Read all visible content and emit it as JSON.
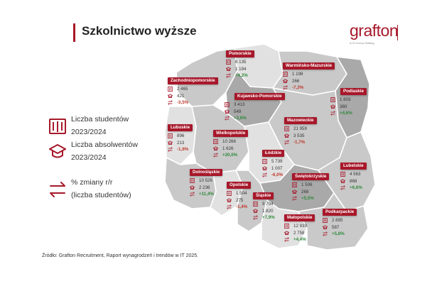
{
  "title": "Szkolnictwo wyższe",
  "logo": {
    "word": "grafton",
    "sub": "A Gi Group Holding"
  },
  "legend": {
    "students_line1": "Liczba studentów",
    "students_line2": "2023/2024",
    "graduates_line1": "Liczba  absolwentów",
    "graduates_line2": "2023/2024",
    "change_line1": "% zmiany r/r",
    "change_line2": "(liczba studentów)"
  },
  "colors": {
    "accent": "#a7182a",
    "region_gray": "#c9c9c9",
    "region_light": "#e1e1e1",
    "region_dark": "#a9a9a9",
    "up": "#2f8a3a",
    "down": "#c0392b"
  },
  "icons": {
    "students": "book-icon",
    "graduates": "graduation-cap-icon",
    "change": "arrows-swap-icon"
  },
  "regions": [
    {
      "name": "Pomorskie",
      "students": "6 135",
      "graduates": "1 194",
      "change": "+4,2%",
      "trend": "up"
    },
    {
      "name": "Warmińsko-Mazurskie",
      "students": "1 198",
      "graduates": "266",
      "change": "-7,3%",
      "trend": "down"
    },
    {
      "name": "Zachodniopomorskie",
      "students": "2 465",
      "graduates": "421",
      "change": "-3,5%",
      "trend": "down"
    },
    {
      "name": "Kujawsko-Pomorskie",
      "students": "3 413",
      "graduates": "549",
      "change": "+3,6%",
      "trend": "up"
    },
    {
      "name": "Podlaskie",
      "students": "1 803",
      "graduates": "360",
      "change": "+4,6%",
      "trend": "up"
    },
    {
      "name": "Mazowieckie",
      "students": "21 959",
      "graduates": "3 535",
      "change": "-1,7%",
      "trend": "down"
    },
    {
      "name": "Lubuskie",
      "students": "896",
      "graduates": "213",
      "change": "-1,9%",
      "trend": "down"
    },
    {
      "name": "Wielkopolskie",
      "students": "10 266",
      "graduates": "1 626",
      "change": "+20,0%",
      "trend": "up"
    },
    {
      "name": "Łódzkie",
      "students": "5 739",
      "graduates": "1 007",
      "change": "-6,0%",
      "trend": "down"
    },
    {
      "name": "Lubelskie",
      "students": "4 563",
      "graduates": "868",
      "change": "+6,6%",
      "trend": "up"
    },
    {
      "name": "Dolnośląskie",
      "students": "10 526",
      "graduates": "2 236",
      "change": "+11,4%",
      "trend": "up"
    },
    {
      "name": "Opolskie",
      "students": "1 504",
      "graduates": "275",
      "change": "-1,4%",
      "trend": "down"
    },
    {
      "name": "Świętokrzyskie",
      "students": "1 506",
      "graduates": "268",
      "change": "+5,5%",
      "trend": "up"
    },
    {
      "name": "Śląskie",
      "students": "9 704",
      "graduates": "1 820",
      "change": "+7,9%",
      "trend": "up"
    },
    {
      "name": "Małopolskie",
      "students": "12 939",
      "graduates": "2 758",
      "change": "+4,4%",
      "trend": "up"
    },
    {
      "name": "Podkarpackie",
      "students": "2 895",
      "graduates": "587",
      "change": "+5,8%",
      "trend": "up"
    }
  ],
  "source": "Źródło: Grafton Recruitment, Raport wynagrodzeń i trendów w IT 2025."
}
